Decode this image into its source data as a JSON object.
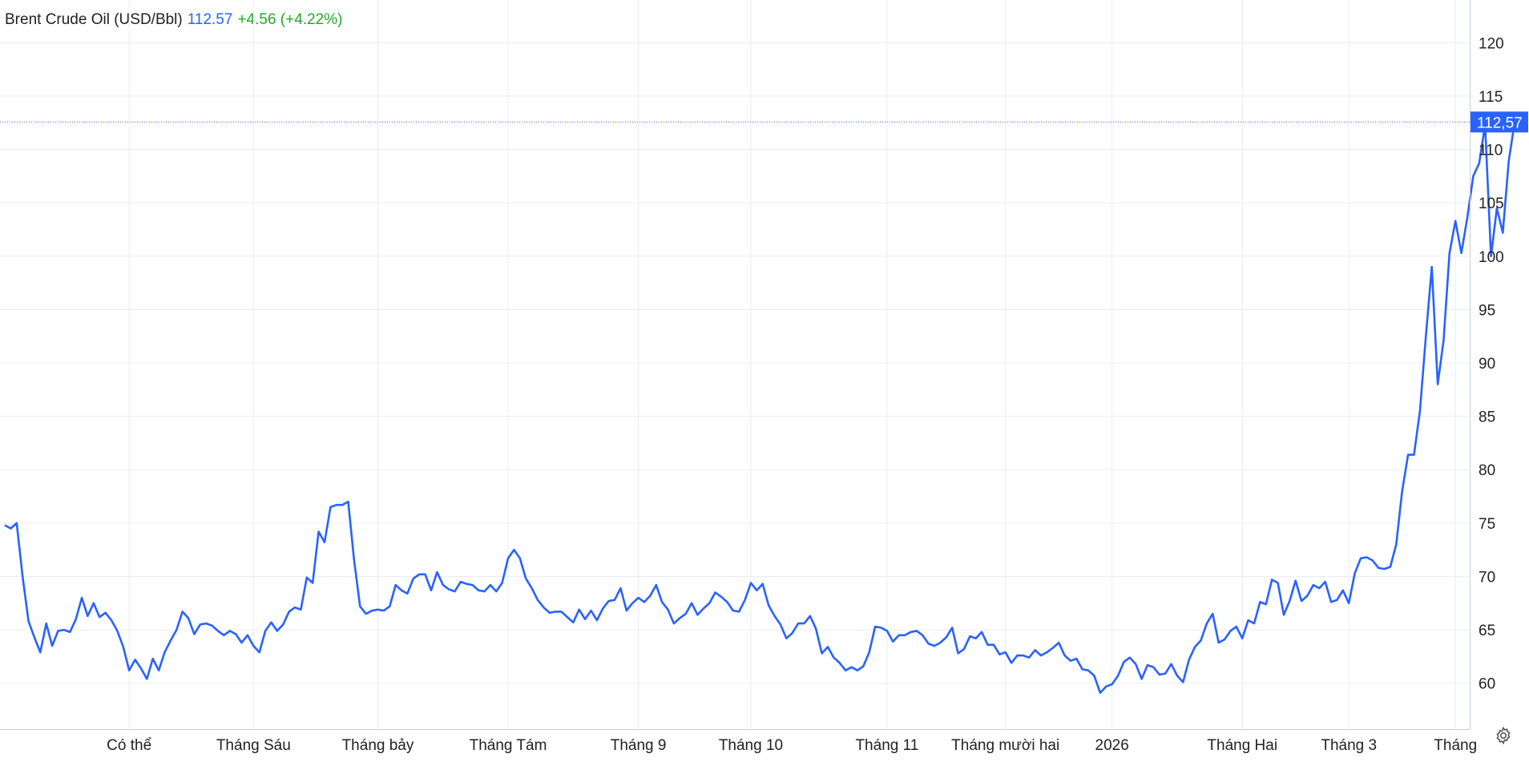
{
  "header": {
    "name": "Brent Crude Oil (USD/Bbl)",
    "price": "112.57",
    "change": "+4.56 (+4.22%)"
  },
  "price_label": "112,57",
  "colors": {
    "line": "#2962ff",
    "change_positive": "#22ab22",
    "grid": "#e9edf2",
    "badge": "#2962ff"
  },
  "icons": {
    "settings": "gear-icon"
  },
  "chart_data": {
    "type": "line",
    "title": "Brent Crude Oil (USD/Bbl)",
    "y_axis_side": "right",
    "ylim": [
      55.7,
      124
    ],
    "yticks": [
      60,
      65,
      70,
      75,
      80,
      85,
      90,
      95,
      100,
      105,
      110,
      115,
      120
    ],
    "xlim": [
      0,
      247
    ],
    "month_labels": [
      {
        "label": "Có thể",
        "index": 21
      },
      {
        "label": "Tháng Sáu",
        "index": 42
      },
      {
        "label": "Tháng bảy",
        "index": 63
      },
      {
        "label": "Tháng Tám",
        "index": 85
      },
      {
        "label": "Tháng 9",
        "index": 107
      },
      {
        "label": "Tháng 10",
        "index": 126
      },
      {
        "label": "Tháng 11",
        "index": 149
      },
      {
        "label": "Tháng mười hai",
        "index": 169
      },
      {
        "label": "2026",
        "index": 187
      },
      {
        "label": "Tháng Hai",
        "index": 209
      },
      {
        "label": "Tháng 3",
        "index": 227
      },
      {
        "label": "Tháng",
        "index": 245
      }
    ],
    "grid": true,
    "last_value": 112.57,
    "series": [
      {
        "values": [
          74.8,
          74.5,
          75,
          70,
          65.8,
          64.3,
          62.9,
          65.6,
          63.5,
          64.9,
          65,
          64.8,
          66,
          68,
          66.3,
          67.5,
          66.2,
          66.6,
          65.9,
          64.9,
          63.4,
          61.2,
          62.2,
          61.4,
          60.4,
          62.3,
          61.2,
          62.9,
          64,
          65,
          66.7,
          66.1,
          64.6,
          65.5,
          65.6,
          65.4,
          64.9,
          64.5,
          64.9,
          64.6,
          63.8,
          64.5,
          63.5,
          62.9,
          64.9,
          65.7,
          64.9,
          65.5,
          66.7,
          67.1,
          66.9,
          69.9,
          69.4,
          74.2,
          73.2,
          76.5,
          76.7,
          76.7,
          77,
          71.5,
          67.2,
          66.5,
          66.8,
          66.9,
          66.8,
          67.2,
          69.2,
          68.7,
          68.4,
          69.8,
          70.2,
          70.2,
          68.7,
          70.4,
          69.2,
          68.8,
          68.6,
          69.5,
          69.3,
          69.2,
          68.7,
          68.6,
          69.2,
          68.6,
          69.4,
          71.7,
          72.5,
          71.7,
          69.8,
          68.9,
          67.8,
          67.1,
          66.6,
          66.7,
          66.7,
          66.2,
          65.7,
          66.9,
          66,
          66.8,
          65.9,
          67,
          67.7,
          67.8,
          68.9,
          66.8,
          67.5,
          68,
          67.6,
          68.2,
          69.2,
          67.6,
          66.9,
          65.6,
          66.1,
          66.5,
          67.5,
          66.4,
          67,
          67.5,
          68.5,
          68.1,
          67.6,
          66.8,
          66.7,
          67.8,
          69.4,
          68.7,
          69.3,
          67.3,
          66.3,
          65.5,
          64.2,
          64.7,
          65.6,
          65.6,
          66.3,
          65.1,
          62.8,
          63.4,
          62.4,
          61.9,
          61.2,
          61.5,
          61.2,
          61.6,
          62.9,
          65.3,
          65.2,
          64.9,
          63.9,
          64.5,
          64.5,
          64.8,
          64.9,
          64.5,
          63.7,
          63.5,
          63.8,
          64.3,
          65.2,
          62.8,
          63.2,
          64.4,
          64.2,
          64.8,
          63.6,
          63.6,
          62.7,
          62.9,
          61.9,
          62.6,
          62.6,
          62.4,
          63.1,
          62.6,
          62.9,
          63.3,
          63.8,
          62.6,
          62.1,
          62.3,
          61.3,
          61.2,
          60.7,
          59.1,
          59.7,
          59.9,
          60.7,
          62,
          62.4,
          61.8,
          60.4,
          61.7,
          61.5,
          60.8,
          60.9,
          61.8,
          60.7,
          60.1,
          62.2,
          63.4,
          64,
          65.6,
          66.5,
          63.8,
          64.1,
          64.9,
          65.3,
          64.2,
          65.9,
          65.6,
          67.6,
          67.4,
          69.7,
          69.4,
          66.4,
          67.7,
          69.6,
          67.7,
          68.2,
          69.2,
          68.9,
          69.5,
          67.6,
          67.8,
          68.7,
          67.5,
          70.3,
          71.7,
          71.8,
          71.5,
          70.8,
          70.7,
          70.9,
          73,
          78,
          81.4,
          81.4,
          85.5,
          92.5,
          99,
          88,
          92.1,
          100.3,
          103.3,
          100.3,
          103.6,
          107.5,
          108.7,
          112.3,
          100,
          104.5,
          102.2,
          108.9,
          112.57
        ]
      }
    ]
  }
}
